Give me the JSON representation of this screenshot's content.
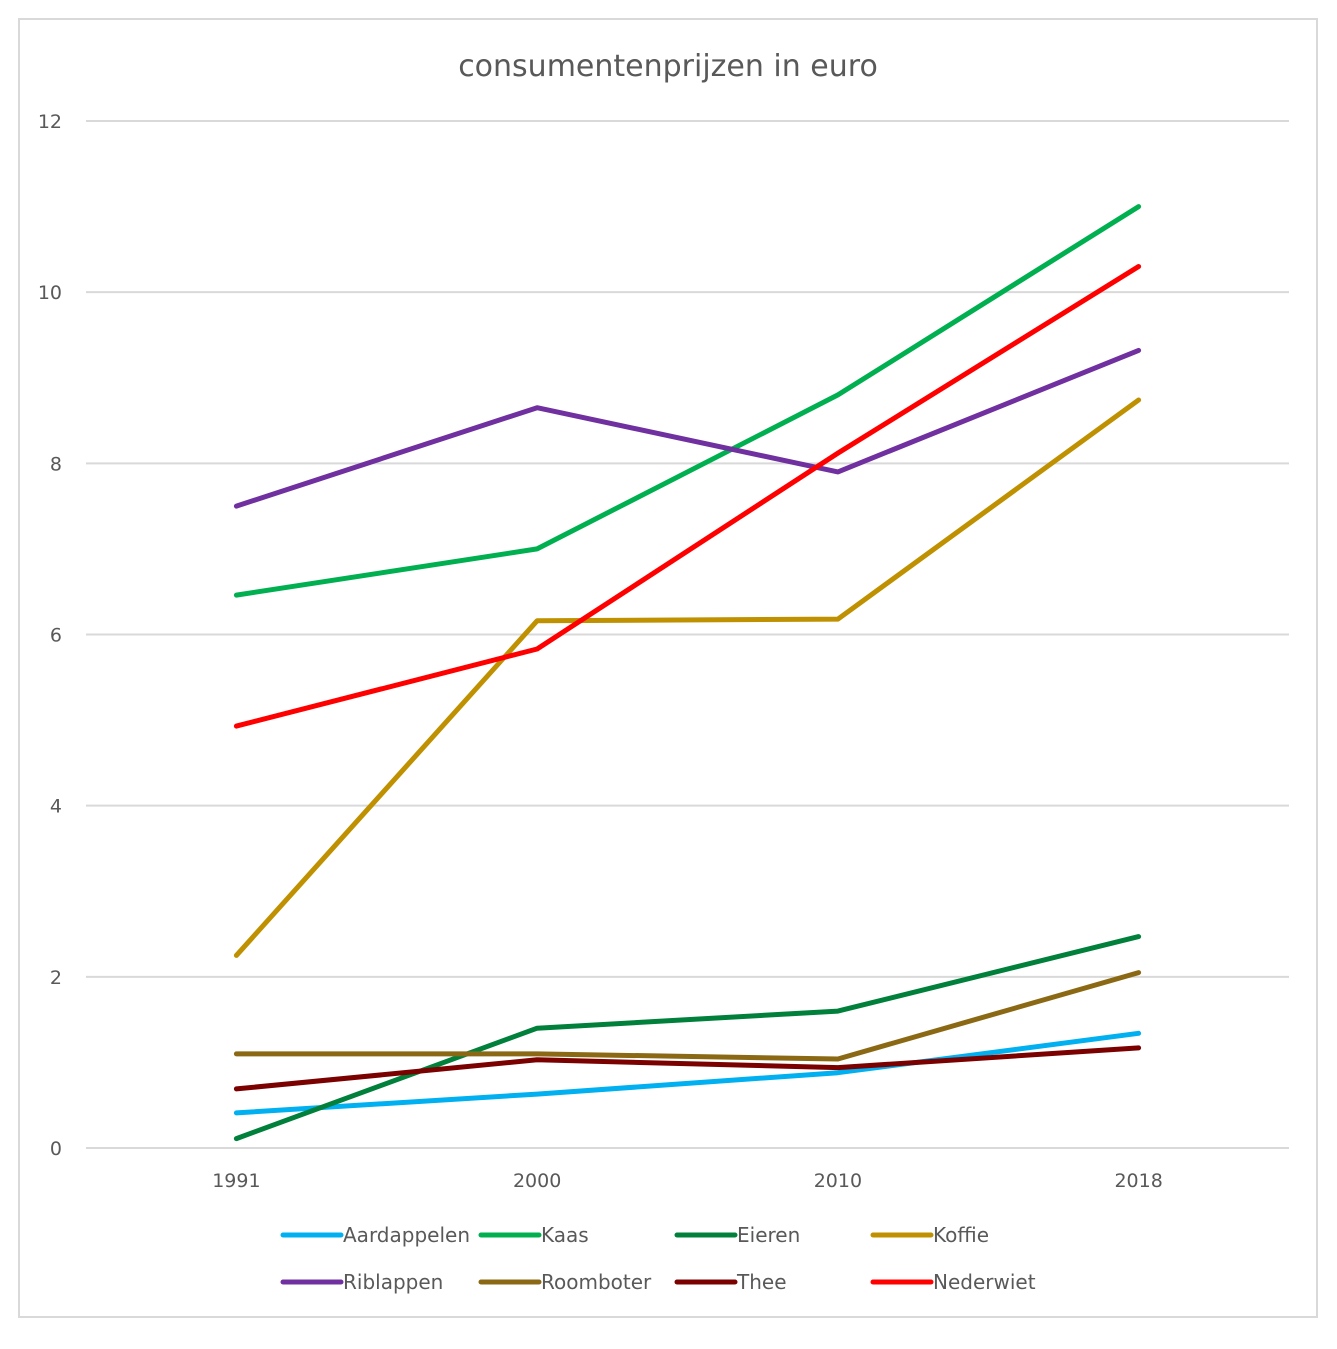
{
  "chart_data": {
    "type": "line",
    "title": "consumentenprijzen in euro",
    "xlabel": "",
    "ylabel": "",
    "categories": [
      "1991",
      "2000",
      "2010",
      "2018"
    ],
    "ylim": [
      0,
      12
    ],
    "yticks": [
      0,
      2,
      4,
      6,
      8,
      10,
      12
    ],
    "grid": true,
    "legend": "bottom",
    "series": [
      {
        "name": "Aardappelen",
        "color": "#00b0f0",
        "values": [
          0.41,
          0.63,
          0.88,
          1.34
        ]
      },
      {
        "name": "Kaas",
        "color": "#00b050",
        "values": [
          6.46,
          7.0,
          8.8,
          11.0
        ]
      },
      {
        "name": "Eieren",
        "color": "#00803a",
        "values": [
          0.11,
          1.4,
          1.6,
          2.47
        ]
      },
      {
        "name": "Koffie",
        "color": "#bf9000",
        "values": [
          2.25,
          6.16,
          6.18,
          8.74
        ]
      },
      {
        "name": "Riblappen",
        "color": "#7030a0",
        "values": [
          7.5,
          8.65,
          7.9,
          9.32
        ]
      },
      {
        "name": "Roomboter",
        "color": "#8b6914",
        "values": [
          1.1,
          1.1,
          1.04,
          2.05
        ]
      },
      {
        "name": "Thee",
        "color": "#7b0000",
        "values": [
          0.69,
          1.03,
          0.94,
          1.17
        ]
      },
      {
        "name": "Nederwiet",
        "color": "#ff0000",
        "values": [
          4.93,
          5.83,
          8.12,
          10.3
        ]
      }
    ]
  }
}
